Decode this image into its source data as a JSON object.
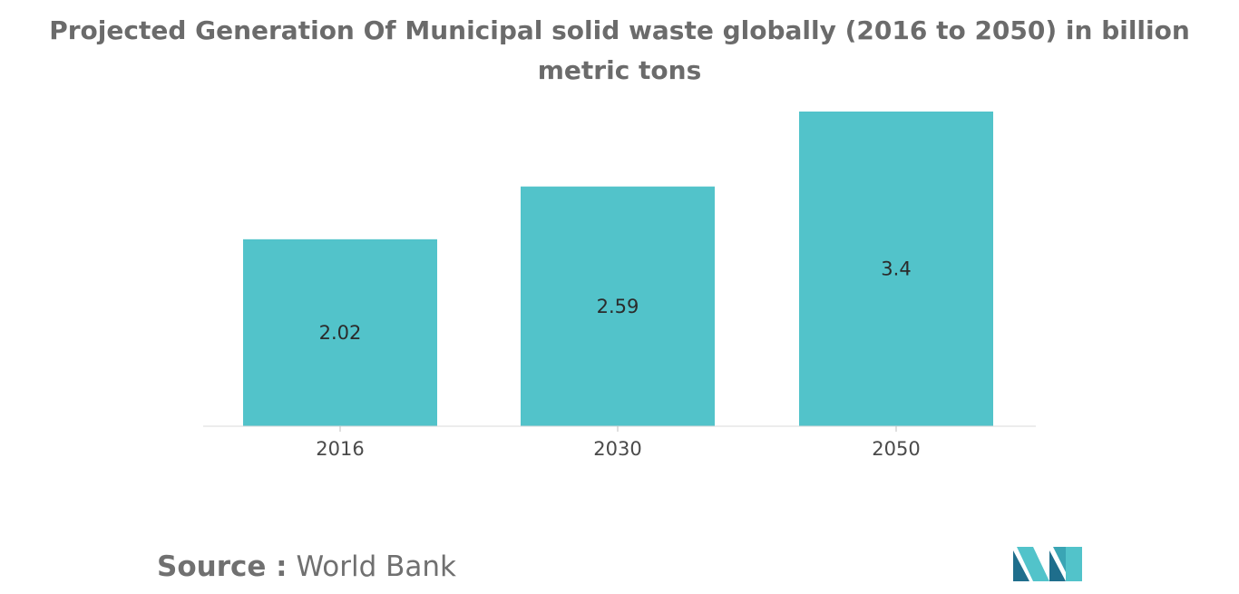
{
  "chart_data": {
    "type": "bar",
    "title": "Projected Generation Of Municipal solid waste globally (2016 to 2050) in billion metric tons",
    "categories": [
      "2016",
      "2030",
      "2050"
    ],
    "values": [
      2.02,
      2.59,
      3.4
    ],
    "value_labels": [
      "2.02",
      "2.59",
      "3.4"
    ],
    "xlabel": "",
    "ylabel": "",
    "ylim": [
      0,
      3.4
    ],
    "grid": false,
    "legend": "none",
    "bar_color": "#52c3ca"
  },
  "source": {
    "label": "Source :",
    "value": "World Bank"
  },
  "logo": {
    "icon": "mordor-intelligence-logo",
    "colors": [
      "#1f6e8c",
      "#52c3ca"
    ]
  }
}
